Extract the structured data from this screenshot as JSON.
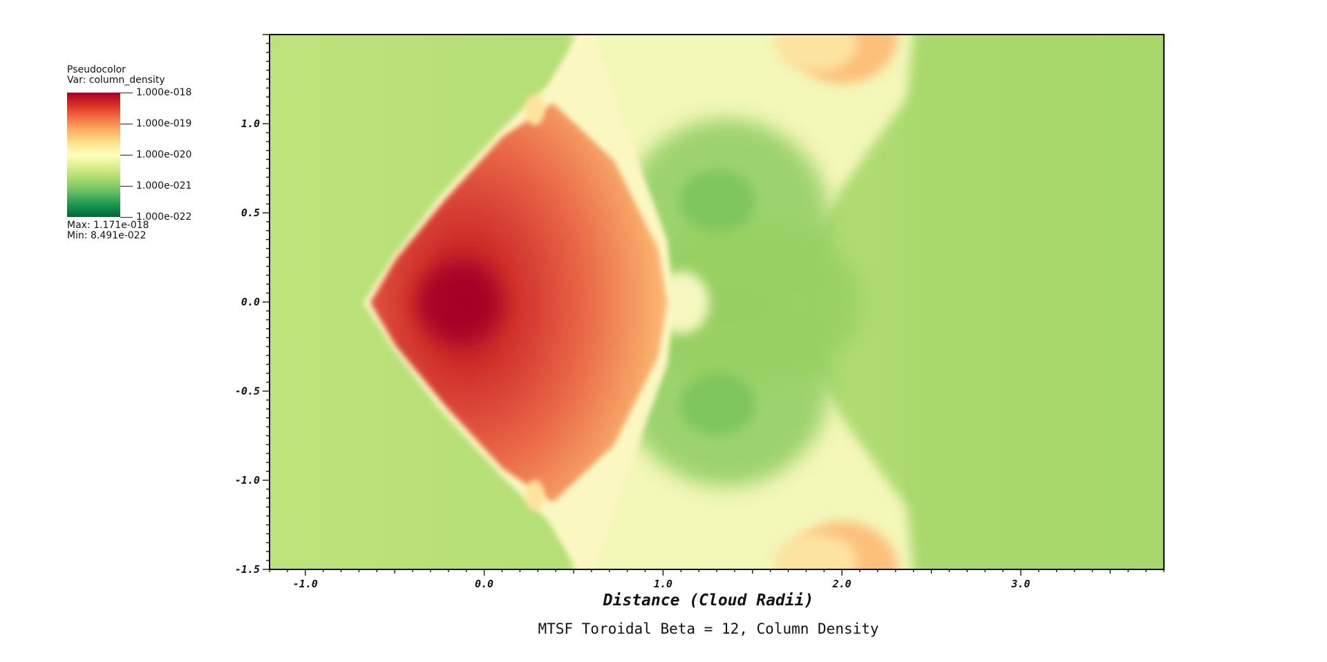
{
  "legend": {
    "plot_type": "Pseudocolor",
    "var_label": "Var: column_density",
    "colormap": [
      "#a50026",
      "#d73027",
      "#f46d43",
      "#fdae61",
      "#fee08b",
      "#ffffbf",
      "#d9ef8b",
      "#a6d96a",
      "#66bd63",
      "#1a9850",
      "#006837"
    ],
    "ticks": [
      "1.000e-018",
      "1.000e-019",
      "1.000e-020",
      "1.000e-021",
      "1.000e-022"
    ],
    "max_label": "Max:  1.171e-018",
    "min_label": "Min:  8.491e-022"
  },
  "chart_data": {
    "type": "heatmap",
    "title": "MTSF Toroidal Beta = 12, Column Density",
    "xlabel": "Distance (Cloud Radii)",
    "ylabel": "",
    "xlim": [
      -1.2,
      3.8
    ],
    "ylim": [
      -1.5,
      1.5
    ],
    "x_ticks": [
      -1.0,
      0.0,
      1.0,
      2.0,
      3.0
    ],
    "x_tick_labels": [
      "-1.0",
      "0.0",
      "1.0",
      "2.0",
      "3.0"
    ],
    "y_ticks": [
      1.0,
      0.5,
      0.0,
      -0.5,
      -1.0,
      -1.5
    ],
    "y_tick_labels": [
      "1.0",
      "0.5",
      "0.0",
      "-0.5",
      "-1.0",
      "-1.5"
    ],
    "colorbar_range": [
      "1.000e-022",
      "1.000e-018"
    ],
    "data_max": "1.171e-018",
    "data_min": "8.491e-022",
    "background_value": "1.000e-021",
    "peak_location": [
      -0.15,
      0.0
    ]
  }
}
